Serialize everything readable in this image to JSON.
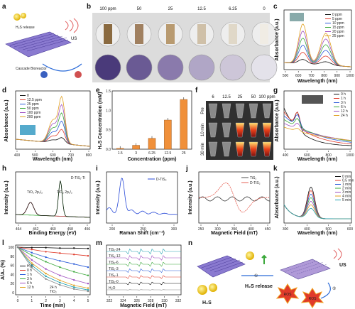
{
  "panels": {
    "a": {
      "letter": "a",
      "texts": {
        "h2s_release": "H₂S release",
        "us": "US",
        "bioreactor": "Cascade Bioreactor"
      }
    },
    "b": {
      "letter": "b",
      "concentrations": [
        "100 ppm",
        "50",
        "25",
        "12.5",
        "6.25",
        "0"
      ]
    },
    "c": {
      "letter": "c",
      "xlabel": "Wavelength (nm)",
      "ylabel": "Absorbance (a.u.)",
      "legend": [
        "0 ppm",
        "5 ppm",
        "10 ppm",
        "15 ppm",
        "20 ppm",
        "25 ppm"
      ],
      "xticks": [
        "500",
        "600",
        "700",
        "800",
        "900",
        "1000"
      ]
    },
    "d": {
      "letter": "d",
      "xlabel": "Wavelength (nm)",
      "ylabel": "Absorbance (a.u.)",
      "legend": [
        "0",
        "12.5 ppm",
        "25 ppm",
        "50 ppm",
        "100 ppm",
        "200 ppm"
      ],
      "xticks": [
        "400",
        "500",
        "600",
        "700",
        "800"
      ]
    },
    "e": {
      "letter": "e",
      "xlabel": "Concentration (ppm)",
      "ylabel": "H₂S Concentration (mM)"
    },
    "f": {
      "letter": "f",
      "columns": [
        "6",
        "12.5",
        "25",
        "50",
        "100 ppm"
      ],
      "rows": [
        "Pre",
        "10 min",
        "30 min"
      ]
    },
    "g": {
      "letter": "g",
      "xlabel": "Wavelength (nm)",
      "ylabel": "Absorbance (a.u.)",
      "legend": [
        "0 h",
        "1 h",
        "3 h",
        "6 h",
        "12 h",
        "24 h"
      ],
      "xticks": [
        "400",
        "600",
        "800",
        "1000"
      ]
    },
    "h": {
      "letter": "h",
      "xlabel": "Binding Energy (eV)",
      "ylabel": "Intensity (a.u.)",
      "title": "D-TiS₂-Ti",
      "peak1": "TiO₂ 2p₃/₂",
      "peak2": "TiO₂ 2p₁/₂",
      "xticks": [
        "464",
        "462",
        "460",
        "458",
        "456"
      ]
    },
    "i": {
      "letter": "i",
      "xlabel": "Raman Shift (cm⁻¹)",
      "ylabel": "Intensity (a.u.)",
      "legend": [
        "D-TiS₂"
      ],
      "xticks": [
        "200",
        "250",
        "300"
      ]
    },
    "j": {
      "letter": "j",
      "xlabel": "Magnetic Field (mT)",
      "ylabel": "Intensity (a.u.)",
      "legend": [
        "TiS₂",
        "D-TiS₂"
      ],
      "xticks": [
        "250",
        "300",
        "350",
        "400",
        "450"
      ]
    },
    "k": {
      "letter": "k",
      "xlabel": "Wavelength (nm)",
      "ylabel": "Absorbance (a.u.)",
      "legend": [
        "0 min",
        "0.5 min",
        "1 min",
        "2 min",
        "3 min",
        "4 min",
        "5 min"
      ],
      "xticks": [
        "300",
        "400",
        "500",
        "600"
      ]
    },
    "l": {
      "letter": "l",
      "xlabel": "Time (min)",
      "ylabel": "A/A₀ (%)",
      "legend": [
        "H₂O",
        "0 h",
        "1 h",
        "3 h",
        "6 h",
        "12 h"
      ],
      "extra_labels": [
        "24 h",
        "TiO₂"
      ],
      "xticks": [
        "0",
        "1",
        "2",
        "3",
        "4",
        "5"
      ],
      "yticks": [
        "100",
        "80",
        "60",
        "40",
        "20",
        "0"
      ]
    },
    "m": {
      "letter": "m",
      "xlabel": "Magnetic Field (mT)",
      "labels": [
        "TiS₂-24",
        "TiS₂-12",
        "TiS₂-6",
        "TiS₂-3",
        "TiS₂-1",
        "TiS₂-0",
        "H₂O"
      ],
      "xticks": [
        "322",
        "324",
        "326",
        "328",
        "330",
        "332"
      ]
    },
    "n": {
      "letter": "n",
      "texts": {
        "us": "US",
        "step1": "①",
        "step2": "②",
        "h2s_release": "H₂S release",
        "ros1": "ROS",
        "ros2": "ROS",
        "h2s": "H₂S"
      }
    }
  },
  "chart_data": [
    {
      "type": "bar",
      "categories": [
        "1.5",
        "3",
        "6.25",
        "12.5",
        "25"
      ],
      "values": [
        0.02,
        0.1,
        0.28,
        0.75,
        1.28
      ],
      "xlabel": "Concentration (ppm)",
      "ylabel": "H₂S Concentration (mM)",
      "ylim": [
        0,
        1.5
      ],
      "yticks": [
        "0.0",
        "0.5",
        "1.0",
        "1.5"
      ]
    },
    {
      "type": "line",
      "x": [
        0,
        1,
        2,
        3,
        4,
        5
      ],
      "series": [
        {
          "name": "H₂O",
          "values": [
            100,
            99,
            99,
            98,
            98,
            97
          ]
        },
        {
          "name": "0 h",
          "values": [
            100,
            95,
            90,
            87,
            84,
            81
          ]
        },
        {
          "name": "1 h",
          "values": [
            100,
            88,
            78,
            70,
            63,
            56
          ]
        },
        {
          "name": "3 h",
          "values": [
            100,
            82,
            68,
            56,
            46,
            38
          ]
        },
        {
          "name": "6 h",
          "values": [
            100,
            72,
            52,
            38,
            28,
            20
          ]
        },
        {
          "name": "12 h",
          "values": [
            100,
            65,
            42,
            27,
            16,
            10
          ]
        },
        {
          "name": "24 h",
          "values": [
            100,
            60,
            36,
            22,
            12,
            6
          ]
        },
        {
          "name": "TiO₂",
          "values": [
            100,
            55,
            30,
            17,
            8,
            3
          ]
        }
      ],
      "xlabel": "Time (min)",
      "ylabel": "A/A₀ (%)",
      "ylim": [
        0,
        100
      ]
    }
  ],
  "colors": {
    "orange": "#f0903a",
    "purple": "#6e4b9c",
    "green": "#3a9a3a",
    "red": "#e03a2a",
    "blue": "#2a5bd8"
  }
}
